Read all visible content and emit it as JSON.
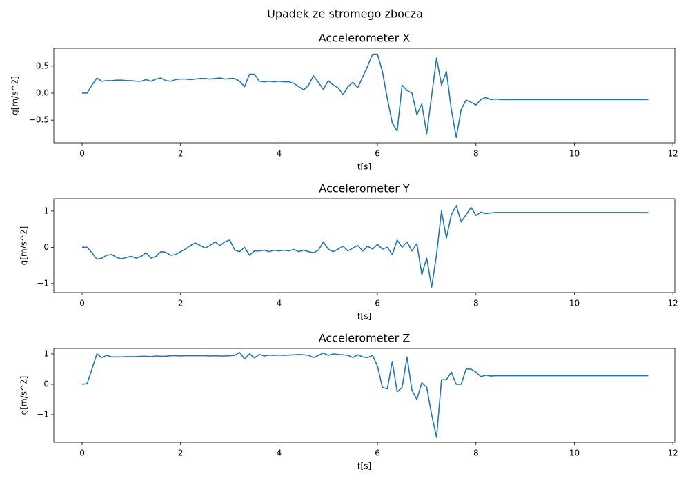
{
  "title": "Upadek ze stromego zbocza",
  "chart_data": [
    {
      "type": "line",
      "title": "Accelerometer X",
      "xlabel": "t[s]",
      "ylabel": "g[m/s^2]",
      "color": "#1f77b4",
      "xlim": [
        -0.575,
        12.04
      ],
      "xticks": [
        0,
        2,
        4,
        6,
        8,
        10,
        12
      ],
      "ylim": [
        -0.92,
        0.83
      ],
      "yticks": [
        {
          "value": -0.5,
          "label": "−0.5"
        },
        {
          "value": 0,
          "label": "0.0"
        },
        0.5
      ],
      "x": [
        0,
        0.1,
        0.2,
        0.3,
        0.4,
        0.5,
        0.6,
        0.7,
        0.8,
        0.9,
        1.0,
        1.1,
        1.2,
        1.3,
        1.4,
        1.5,
        1.6,
        1.7,
        1.8,
        1.9,
        2.0,
        2.1,
        2.2,
        2.3,
        2.4,
        2.5,
        2.6,
        2.7,
        2.8,
        2.9,
        3.0,
        3.1,
        3.2,
        3.3,
        3.4,
        3.5,
        3.6,
        3.7,
        3.8,
        3.9,
        4.0,
        4.1,
        4.2,
        4.3,
        4.4,
        4.5,
        4.6,
        4.7,
        4.8,
        4.9,
        5.0,
        5.1,
        5.2,
        5.3,
        5.4,
        5.5,
        5.6,
        5.7,
        5.8,
        5.9,
        6.0,
        6.1,
        6.2,
        6.3,
        6.4,
        6.5,
        6.6,
        6.7,
        6.8,
        6.9,
        7.0,
        7.1,
        7.2,
        7.3,
        7.4,
        7.5,
        7.6,
        7.7,
        7.8,
        7.9,
        8.0,
        8.1,
        8.2,
        8.3,
        8.4,
        8.5,
        11.5
      ],
      "values": [
        0,
        0.0,
        0.15,
        0.28,
        0.22,
        0.23,
        0.23,
        0.24,
        0.24,
        0.23,
        0.23,
        0.22,
        0.22,
        0.25,
        0.22,
        0.26,
        0.28,
        0.23,
        0.22,
        0.25,
        0.26,
        0.26,
        0.25,
        0.26,
        0.27,
        0.27,
        0.26,
        0.27,
        0.28,
        0.26,
        0.27,
        0.27,
        0.22,
        0.12,
        0.35,
        0.35,
        0.22,
        0.21,
        0.22,
        0.21,
        0.22,
        0.21,
        0.21,
        0.18,
        0.12,
        0.06,
        0.15,
        0.32,
        0.2,
        0.07,
        0.23,
        0.15,
        0.1,
        -0.03,
        0.12,
        0.2,
        0.1,
        0.3,
        0.5,
        0.72,
        0.72,
        0.4,
        -0.1,
        -0.55,
        -0.7,
        0.15,
        0.05,
        0.0,
        -0.4,
        -0.2,
        -0.75,
        -0.05,
        0.65,
        0.15,
        0.4,
        -0.3,
        -0.82,
        -0.3,
        -0.13,
        -0.17,
        -0.22,
        -0.12,
        -0.08,
        -0.12,
        -0.11,
        -0.12,
        -0.12
      ]
    },
    {
      "type": "line",
      "title": "Accelerometer Y",
      "xlabel": "t[s]",
      "ylabel": "g[m/s^2]",
      "color": "#1f77b4",
      "xlim": [
        -0.575,
        12.04
      ],
      "xticks": [
        0,
        2,
        4,
        6,
        8,
        10,
        12
      ],
      "ylim": [
        -1.25,
        1.34
      ],
      "yticks": [
        {
          "value": -1,
          "label": "−1"
        },
        0,
        1
      ],
      "x": [
        0,
        0.1,
        0.2,
        0.3,
        0.4,
        0.5,
        0.6,
        0.7,
        0.8,
        0.9,
        1.0,
        1.1,
        1.2,
        1.3,
        1.4,
        1.5,
        1.6,
        1.7,
        1.8,
        1.9,
        2.0,
        2.1,
        2.2,
        2.3,
        2.4,
        2.5,
        2.6,
        2.7,
        2.8,
        2.9,
        3.0,
        3.1,
        3.2,
        3.3,
        3.4,
        3.5,
        3.6,
        3.7,
        3.8,
        3.9,
        4.0,
        4.1,
        4.2,
        4.3,
        4.4,
        4.5,
        4.6,
        4.7,
        4.8,
        4.9,
        5.0,
        5.1,
        5.2,
        5.3,
        5.4,
        5.5,
        5.6,
        5.7,
        5.8,
        5.9,
        6.0,
        6.1,
        6.2,
        6.3,
        6.4,
        6.5,
        6.6,
        6.7,
        6.8,
        6.9,
        7.0,
        7.1,
        7.2,
        7.3,
        7.4,
        7.5,
        7.6,
        7.7,
        7.8,
        7.9,
        8.0,
        8.1,
        8.2,
        8.3,
        8.4,
        8.5,
        11.5
      ],
      "values": [
        0,
        0,
        -0.15,
        -0.33,
        -0.3,
        -0.22,
        -0.2,
        -0.28,
        -0.32,
        -0.28,
        -0.25,
        -0.3,
        -0.25,
        -0.15,
        -0.3,
        -0.25,
        -0.12,
        -0.14,
        -0.22,
        -0.2,
        -0.12,
        -0.05,
        0.05,
        0.12,
        0.05,
        -0.02,
        0.05,
        0.15,
        0.05,
        0.15,
        0.2,
        -0.08,
        -0.12,
        0.0,
        -0.22,
        -0.1,
        -0.1,
        -0.08,
        -0.12,
        -0.08,
        -0.1,
        -0.08,
        -0.1,
        -0.06,
        -0.12,
        -0.08,
        -0.12,
        -0.15,
        -0.08,
        0.15,
        -0.05,
        -0.12,
        -0.05,
        0.03,
        -0.1,
        -0.02,
        0.05,
        -0.1,
        0.03,
        -0.05,
        0.08,
        -0.05,
        0.0,
        -0.2,
        0.2,
        0.0,
        0.15,
        -0.1,
        0.1,
        -0.75,
        -0.3,
        -1.1,
        -0.2,
        1.0,
        0.25,
        0.9,
        1.15,
        0.7,
        0.9,
        1.1,
        0.88,
        0.97,
        0.93,
        0.95,
        0.96,
        0.96,
        0.96
      ]
    },
    {
      "type": "line",
      "title": "Accelerometer Z",
      "xlabel": "t[s]",
      "ylabel": "g[m/s^2]",
      "color": "#1f77b4",
      "xlim": [
        -0.575,
        12.04
      ],
      "xticks": [
        0,
        2,
        4,
        6,
        8,
        10,
        12
      ],
      "ylim": [
        -1.91,
        1.18
      ],
      "yticks": [
        {
          "value": -1,
          "label": "−1"
        },
        0,
        1
      ],
      "x": [
        0,
        0.1,
        0.2,
        0.3,
        0.4,
        0.5,
        0.6,
        0.7,
        0.8,
        0.9,
        1.0,
        1.1,
        1.2,
        1.3,
        1.4,
        1.5,
        1.6,
        1.7,
        1.8,
        1.9,
        2.0,
        2.1,
        2.2,
        2.3,
        2.4,
        2.5,
        2.6,
        2.7,
        2.8,
        2.9,
        3.0,
        3.1,
        3.2,
        3.3,
        3.4,
        3.5,
        3.6,
        3.7,
        3.8,
        3.9,
        4.0,
        4.1,
        4.2,
        4.3,
        4.4,
        4.5,
        4.6,
        4.7,
        4.8,
        4.9,
        5.0,
        5.1,
        5.2,
        5.3,
        5.4,
        5.5,
        5.6,
        5.7,
        5.8,
        5.9,
        6.0,
        6.1,
        6.2,
        6.3,
        6.4,
        6.5,
        6.6,
        6.7,
        6.8,
        6.9,
        7.0,
        7.1,
        7.2,
        7.3,
        7.4,
        7.5,
        7.6,
        7.7,
        7.8,
        7.9,
        8.0,
        8.1,
        8.2,
        8.3,
        8.4,
        8.5,
        11.5
      ],
      "values": [
        0,
        0.02,
        0.5,
        1.0,
        0.88,
        0.95,
        0.9,
        0.9,
        0.9,
        0.91,
        0.91,
        0.91,
        0.92,
        0.92,
        0.91,
        0.93,
        0.92,
        0.92,
        0.94,
        0.94,
        0.93,
        0.94,
        0.94,
        0.94,
        0.94,
        0.94,
        0.93,
        0.94,
        0.93,
        0.93,
        0.94,
        0.95,
        1.05,
        0.83,
        1.0,
        0.87,
        0.98,
        0.93,
        0.96,
        0.95,
        0.96,
        0.95,
        0.96,
        0.97,
        0.98,
        0.97,
        0.95,
        0.88,
        0.95,
        1.03,
        0.95,
        1.0,
        0.98,
        0.97,
        0.95,
        0.88,
        0.97,
        0.9,
        0.88,
        0.95,
        0.6,
        -0.1,
        -0.15,
        0.75,
        -0.25,
        -0.1,
        0.9,
        -0.2,
        -0.5,
        0.05,
        -0.1,
        -1.0,
        -1.75,
        0.15,
        0.15,
        0.4,
        0.0,
        0.0,
        0.5,
        0.5,
        0.4,
        0.25,
        0.3,
        0.27,
        0.28,
        0.28,
        0.28
      ]
    }
  ]
}
